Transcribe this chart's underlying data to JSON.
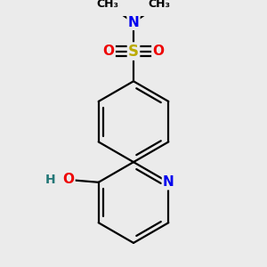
{
  "bg_color": "#ebebeb",
  "atom_colors": {
    "C": "#000000",
    "N": "#0000ee",
    "O": "#ee0000",
    "S": "#bbaa00",
    "H": "#227777"
  },
  "bond_color": "#000000",
  "bond_width": 1.6,
  "font_size": 11,
  "fig_size": [
    3.0,
    3.0
  ],
  "dpi": 100
}
